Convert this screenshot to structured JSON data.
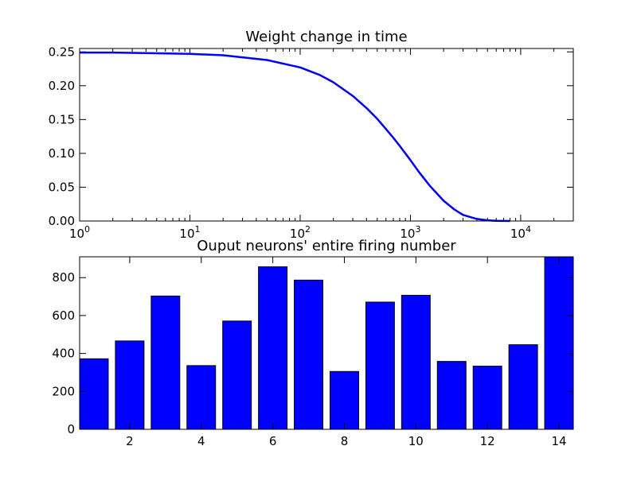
{
  "chart_data": [
    {
      "type": "line",
      "title": "Weight change in time",
      "xlabel": "",
      "ylabel": "",
      "x_scale": "log",
      "xlim": [
        1,
        30000
      ],
      "ylim": [
        0,
        0.255
      ],
      "grid": false,
      "xticks": [
        {
          "base": "10",
          "exp": "0"
        },
        {
          "base": "10",
          "exp": "1"
        },
        {
          "base": "10",
          "exp": "2"
        },
        {
          "base": "10",
          "exp": "3"
        },
        {
          "base": "10",
          "exp": "4"
        }
      ],
      "yticks": [
        "0.00",
        "0.05",
        "0.10",
        "0.15",
        "0.20",
        "0.25"
      ],
      "line_color": "#0000ff",
      "series": [
        {
          "x": [
            1,
            2,
            5,
            10,
            20,
            50,
            100,
            150,
            200,
            300,
            400,
            500,
            600,
            700,
            800,
            1000,
            1200,
            1500,
            2000,
            2500,
            3000,
            4000,
            5000,
            6000,
            8000
          ],
          "y": [
            0.249,
            0.249,
            0.248,
            0.247,
            0.245,
            0.238,
            0.227,
            0.216,
            0.205,
            0.185,
            0.167,
            0.151,
            0.136,
            0.123,
            0.111,
            0.09,
            0.072,
            0.052,
            0.03,
            0.017,
            0.009,
            0.003,
            0.001,
            0.0003,
            0.0
          ]
        }
      ]
    },
    {
      "type": "bar",
      "title": "Ouput neurons' entire firing number",
      "xlabel": "",
      "ylabel": "",
      "categories": [
        1,
        2,
        3,
        4,
        5,
        6,
        7,
        8,
        9,
        10,
        11,
        12,
        13,
        14
      ],
      "values": [
        372,
        466,
        703,
        336,
        571,
        857,
        787,
        305,
        671,
        707,
        358,
        333,
        446,
        910
      ],
      "xlim": [
        0.6,
        14.4
      ],
      "ylim": [
        0,
        910
      ],
      "grid": false,
      "xticks": [
        "2",
        "4",
        "6",
        "8",
        "10",
        "12",
        "14"
      ],
      "yticks": [
        "0",
        "200",
        "400",
        "600",
        "800"
      ],
      "bar_color": "#0000ff"
    }
  ]
}
